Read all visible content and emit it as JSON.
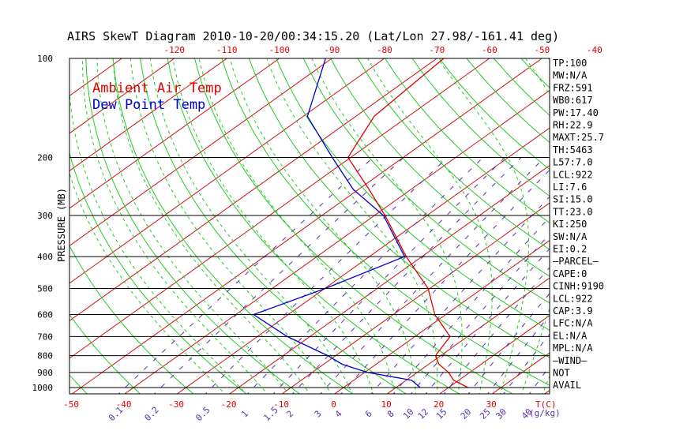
{
  "title": "AIRS SkewT Diagram 2010-10-20/00:34:15.20 (Lat/Lon 27.98/-161.41 deg)",
  "legend": {
    "air_temp": "Ambient Air Temp",
    "dew_point": "Dew Point Temp"
  },
  "colors": {
    "air_temp": "#e00000",
    "dew_point": "#0000d0",
    "isotherms": "#d01010",
    "dry_adiabats": "#22cc22",
    "moist_adiabats": "#22cc22",
    "mixing_ratio": "#5a2db0",
    "axis": "#000000",
    "temp_labels": "#e00000"
  },
  "chart_data": {
    "type": "line",
    "title": "AIRS SkewT Diagram 2010-10-20/00:34:15.20 (Lat/Lon 27.98/-161.41 deg)",
    "ylabel": "PRESSURE (MB)",
    "xlabel_bottom_right": "T(C)",
    "mixing_ratio_unit": "(g/kg)",
    "ylim": [
      1050,
      100
    ],
    "xlim_bottom": [
      -50,
      40
    ],
    "pressure_levels": [
      100,
      200,
      300,
      400,
      500,
      600,
      700,
      800,
      900,
      1000
    ],
    "pressure_tick_labels": [
      "100",
      "200",
      "300",
      "400",
      "500",
      "600",
      "700",
      "800",
      "900",
      "1000"
    ],
    "bottom_temp_ticks": [
      -50,
      -40,
      -30,
      -20,
      -10,
      0,
      10,
      20,
      30
    ],
    "bottom_temp_labels": [
      "-50",
      "-40",
      "-30",
      "-20",
      "-10",
      "0",
      "10",
      "20",
      "30"
    ],
    "top_temp_ticks": [
      -120,
      -110,
      -100,
      -90,
      -80,
      -70,
      -60,
      -50,
      -40
    ],
    "top_temp_labels": [
      "-120",
      "-110",
      "-100",
      "-90",
      "-80",
      "-70",
      "-60",
      "-50",
      "-40"
    ],
    "mixing_ratio_values": [
      0.1,
      0.2,
      0.5,
      1,
      1.5,
      2,
      3,
      4,
      6,
      8,
      10,
      12,
      15,
      20,
      25,
      30,
      40
    ],
    "mixing_ratio_labels": [
      "0.1",
      "0.2",
      "0.5",
      "1",
      "1.5",
      "2",
      "3",
      "4",
      "6",
      "8",
      "10",
      "12",
      "15",
      "20",
      "25",
      "30",
      "40"
    ],
    "series": [
      {
        "name": "Ambient Air Temp",
        "pressure": [
          1000,
          950,
          900,
          850,
          800,
          700,
          600,
          500,
          400,
          300,
          250,
          200,
          150,
          100
        ],
        "temp_c": [
          23.7,
          19.0,
          16.0,
          12.0,
          9.0,
          6.7,
          -2.1,
          -10.3,
          -23.0,
          -38.0,
          -48.0,
          -60.5,
          -66.5,
          -68.7
        ]
      },
      {
        "name": "Dew Point Temp",
        "pressure": [
          1000,
          950,
          900,
          850,
          800,
          700,
          600,
          500,
          400,
          300,
          250,
          200,
          150,
          100
        ],
        "temp_c": [
          14.6,
          11.0,
          0.6,
          -6.4,
          -11.5,
          -24.3,
          -36.6,
          -29.9,
          -23.3,
          -38.3,
          -51.0,
          -63.5,
          -79.2,
          -91.2
        ]
      }
    ]
  },
  "indices": [
    "TP:100",
    "MW:N/A",
    "FRZ:591",
    "WB0:617",
    "PW:17.40",
    "RH:22.9",
    "MAXT:25.7",
    "TH:5463",
    "L57:7.0",
    "LCL:922",
    "LI:7.6",
    "SI:15.0",
    "TT:23.0",
    "KI:250",
    "SW:N/A",
    "EI:0.2",
    "—PARCEL—",
    "CAPE:0",
    "CINH:9190",
    "LCL:922",
    "CAP:3.9",
    "LFC:N/A",
    "EL:N/A",
    "MPL:N/A",
    "—WIND—",
    "NOT",
    "AVAIL"
  ]
}
